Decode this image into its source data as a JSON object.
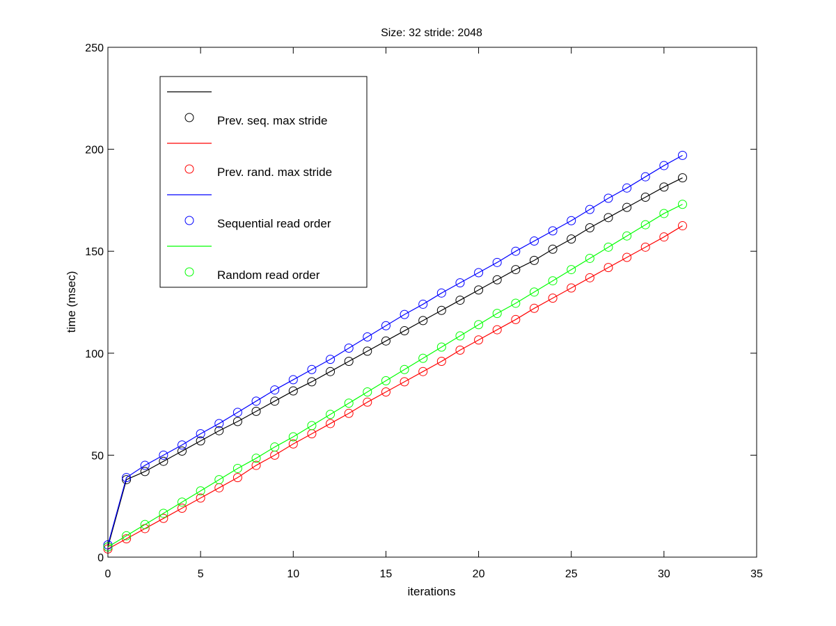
{
  "chart_data": {
    "type": "line",
    "title": "Size: 32 stride: 2048",
    "xlabel": "iterations",
    "ylabel": "time (msec)",
    "xlim": [
      0,
      35
    ],
    "ylim": [
      0,
      250
    ],
    "xticks": [
      0,
      5,
      10,
      15,
      20,
      25,
      30,
      35
    ],
    "yticks": [
      0,
      50,
      100,
      150,
      200,
      250
    ],
    "grid": false,
    "legend_position": "top-left",
    "marker": "open-circle",
    "legend": [
      {
        "name": "Prev. seq. max stride",
        "color": "#000000"
      },
      {
        "name": "Prev. rand. max stride",
        "color": "#ff0000"
      },
      {
        "name": "Sequential read order",
        "color": "#0000ff"
      },
      {
        "name": "Random read order",
        "color": "#00ff00"
      }
    ],
    "series": [
      {
        "name": "Prev. seq. max stride",
        "color": "#000000",
        "x": [
          0,
          1,
          2,
          3,
          4,
          5,
          6,
          7,
          8,
          9,
          10,
          11,
          12,
          13,
          14,
          15,
          16,
          17,
          18,
          19,
          20,
          21,
          22,
          23,
          24,
          25,
          26,
          27,
          28,
          29,
          30,
          31
        ],
        "values": [
          5,
          38,
          42,
          47,
          52,
          57,
          62,
          66.5,
          71.5,
          76.5,
          81.5,
          86,
          91,
          96,
          101,
          106,
          111,
          116,
          121,
          126,
          131,
          136,
          141,
          145.5,
          151,
          156,
          161.5,
          166.5,
          171.5,
          176.5,
          181.5,
          186
        ]
      },
      {
        "name": "Prev. rand. max stride",
        "color": "#ff0000",
        "x": [
          0,
          1,
          2,
          3,
          4,
          5,
          6,
          7,
          8,
          9,
          10,
          11,
          12,
          13,
          14,
          15,
          16,
          17,
          18,
          19,
          20,
          21,
          22,
          23,
          24,
          25,
          26,
          27,
          28,
          29,
          30,
          31
        ],
        "values": [
          4,
          9,
          14,
          19,
          24,
          29,
          34,
          39,
          45,
          50,
          55.5,
          60.5,
          65.5,
          70.5,
          76,
          81,
          86,
          91,
          96,
          101.5,
          106.5,
          111.5,
          116.5,
          122,
          127,
          132,
          137,
          142,
          147,
          152,
          157,
          162.5
        ]
      },
      {
        "name": "Sequential read order",
        "color": "#0000ff",
        "x": [
          0,
          1,
          2,
          3,
          4,
          5,
          6,
          7,
          8,
          9,
          10,
          11,
          12,
          13,
          14,
          15,
          16,
          17,
          18,
          19,
          20,
          21,
          22,
          23,
          24,
          25,
          26,
          27,
          28,
          29,
          30,
          31
        ],
        "values": [
          6,
          39,
          45,
          50,
          55,
          60.5,
          65.5,
          71,
          76.5,
          82,
          87,
          92,
          97,
          102.5,
          108,
          113.5,
          119,
          124,
          129.5,
          134.5,
          139.5,
          144.5,
          150,
          155,
          160,
          165,
          170.5,
          176,
          181,
          186.5,
          192,
          197
        ]
      },
      {
        "name": "Random read order",
        "color": "#00ff00",
        "x": [
          0,
          1,
          2,
          3,
          4,
          5,
          6,
          7,
          8,
          9,
          10,
          11,
          12,
          13,
          14,
          15,
          16,
          17,
          18,
          19,
          20,
          21,
          22,
          23,
          24,
          25,
          26,
          27,
          28,
          29,
          30,
          31
        ],
        "values": [
          5,
          10.5,
          16,
          21.5,
          27,
          32.5,
          38,
          43.5,
          48.5,
          54,
          59,
          64.5,
          70,
          75.5,
          81,
          86.5,
          92,
          97.5,
          103,
          108.5,
          114,
          119.5,
          124.5,
          130,
          135.5,
          141,
          146.5,
          152,
          157.5,
          163,
          168.5,
          173
        ]
      }
    ]
  }
}
